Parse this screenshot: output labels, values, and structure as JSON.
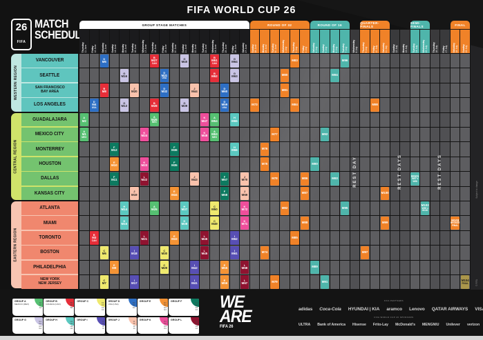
{
  "header": {
    "title": "FIFA WORLD CUP 26",
    "emblem_number": "26",
    "emblem_fifa": "FIFA",
    "left_title_line1": "MATCH",
    "left_title_line2": "SCHEDULE"
  },
  "colors": {
    "stage_orange": "#F08228",
    "stage_teal": "#4FB5AB",
    "final_gold": "#AA964B",
    "grid_cell": "#5d5d60",
    "grid_cell_rest": "#505053",
    "group_header_bg": "#ffffff",
    "date_group_bg": "#1b1b1d",
    "date_rest_bg": "#3a3a3c",
    "groups": {
      "A": "#56C072",
      "B": "#E62E39",
      "C": "#EFE96E",
      "D": "#2E6FC4",
      "E": "#F49335",
      "F": "#0D7A60",
      "G": "#C9C4E4",
      "H": "#5BC8C0",
      "I": "#584FB4",
      "J": "#F9C2AC",
      "K": "#EE4E9B",
      "L": "#8F1330"
    }
  },
  "stages": [
    {
      "label": "GROUP STAGE MATCHES",
      "from": 0,
      "to": 16,
      "bg": "#ffffff",
      "fg": "#1a1a1a"
    },
    {
      "label": "ROUND OF 32",
      "from": 17,
      "to": 22,
      "bg": "#F08228",
      "fg": "#ffffff"
    },
    {
      "label": "ROUND OF 16",
      "from": 23,
      "to": 26,
      "bg": "#4FB5AB",
      "fg": "#ffffff"
    },
    {
      "label": "QUARTER-FINALS",
      "from": 28,
      "to": 30,
      "bg": "#F08228",
      "fg": "#ffffff"
    },
    {
      "label": "SEMI-FINALS",
      "from": 33,
      "to": 34,
      "bg": "#4FB5AB",
      "fg": "#ffffff"
    },
    {
      "label": "FINAL",
      "from": 37,
      "to": 38,
      "bg": "#F08228",
      "fg": "#ffffff"
    }
  ],
  "dates": [
    {
      "day": "Thursday",
      "date": "11 June",
      "type": "group"
    },
    {
      "day": "Friday",
      "date": "12 June",
      "type": "group"
    },
    {
      "day": "Saturday",
      "date": "13 June",
      "type": "group"
    },
    {
      "day": "Sunday",
      "date": "14 June",
      "type": "group"
    },
    {
      "day": "Monday",
      "date": "15 June",
      "type": "group"
    },
    {
      "day": "Tuesday",
      "date": "16 June",
      "type": "group"
    },
    {
      "day": "Wednesday",
      "date": "17 June",
      "type": "group"
    },
    {
      "day": "Thursday",
      "date": "18 June",
      "type": "group"
    },
    {
      "day": "Friday",
      "date": "19 June",
      "type": "group"
    },
    {
      "day": "Saturday",
      "date": "20 June",
      "type": "group"
    },
    {
      "day": "Sunday",
      "date": "21 June",
      "type": "group"
    },
    {
      "day": "Monday",
      "date": "22 June",
      "type": "group"
    },
    {
      "day": "Tuesday",
      "date": "23 June",
      "type": "group"
    },
    {
      "day": "Wednesday",
      "date": "24 June",
      "type": "group"
    },
    {
      "day": "Thursday",
      "date": "25 June",
      "type": "group"
    },
    {
      "day": "Friday",
      "date": "26 June",
      "type": "group"
    },
    {
      "day": "Saturday",
      "date": "27 June",
      "type": "group"
    },
    {
      "day": "Sunday",
      "date": "28 June",
      "type": "r32"
    },
    {
      "day": "Monday",
      "date": "29 June",
      "type": "r32"
    },
    {
      "day": "Tuesday",
      "date": "30 June",
      "type": "r32"
    },
    {
      "day": "Wednesday",
      "date": "1 July",
      "type": "r32"
    },
    {
      "day": "Thursday",
      "date": "2 July",
      "type": "r32"
    },
    {
      "day": "Friday",
      "date": "3 July",
      "type": "r32"
    },
    {
      "day": "Saturday",
      "date": "4 July",
      "type": "r16"
    },
    {
      "day": "Sunday",
      "date": "5 July",
      "type": "r16"
    },
    {
      "day": "Monday",
      "date": "6 July",
      "type": "r16"
    },
    {
      "day": "Tuesday",
      "date": "7 July",
      "type": "r16"
    },
    {
      "day": "Wednesday",
      "date": "8 July",
      "type": "rest"
    },
    {
      "day": "Thursday",
      "date": "9 July",
      "type": "qf"
    },
    {
      "day": "Friday",
      "date": "10 July",
      "type": "qf"
    },
    {
      "day": "Saturday",
      "date": "11 July",
      "type": "qf"
    },
    {
      "day": "Sunday",
      "date": "12 July",
      "type": "rest"
    },
    {
      "day": "Monday",
      "date": "13 July",
      "type": "rest"
    },
    {
      "day": "Tuesday",
      "date": "14 July",
      "type": "sf"
    },
    {
      "day": "Wednesday",
      "date": "15 July",
      "type": "sf"
    },
    {
      "day": "Thursday",
      "date": "16 July",
      "type": "rest"
    },
    {
      "day": "Friday",
      "date": "17 July",
      "type": "rest"
    },
    {
      "day": "Saturday",
      "date": "18 July",
      "type": "final"
    },
    {
      "day": "Sunday",
      "date": "19 July",
      "type": "final"
    }
  ],
  "rest_labels": [
    {
      "from": 27,
      "to": 27,
      "text": "REST DAY"
    },
    {
      "from": 31,
      "to": 32,
      "text": "REST DAYS"
    },
    {
      "from": 35,
      "to": 36,
      "text": "REST DAYS"
    }
  ],
  "regions": [
    {
      "name": "WESTERN REGION",
      "tab": "#BFE7E1",
      "cell": "#5FC5BE",
      "cities": [
        [
          "VANCOUVER"
        ],
        [
          "SEATTLE"
        ],
        [
          "SAN FRANCISCO",
          "BAY AREA"
        ],
        [
          "LOS ANGELES"
        ]
      ]
    },
    {
      "name": "CENTRAL REGION",
      "tab": "#CFE36A",
      "cell": "#74C36F",
      "cities": [
        [
          "GUADALAJARA"
        ],
        [
          "MEXICO CITY"
        ],
        [
          "MONTERREY"
        ],
        [
          "HOUSTON"
        ],
        [
          "DALLAS"
        ],
        [
          "KANSAS CITY"
        ]
      ]
    },
    {
      "name": "EASTERN REGION",
      "tab": "#F8C4B1",
      "cell": "#F0876E",
      "cities": [
        [
          "ATLANTA"
        ],
        [
          "MIAMI"
        ],
        [
          "TORONTO"
        ],
        [
          "BOSTON"
        ],
        [
          "PHILADELPHIA"
        ],
        [
          "NEW YORK",
          "NEW JERSEY"
        ]
      ]
    }
  ],
  "matches": [
    {
      "row": 0,
      "col": 2,
      "group": "D",
      "code": "M5"
    },
    {
      "row": 0,
      "col": 7,
      "group": "B",
      "code": "M27",
      "note": "CAN"
    },
    {
      "row": 0,
      "col": 10,
      "group": "G",
      "code": "M40"
    },
    {
      "row": 0,
      "col": 13,
      "group": "B",
      "code": "M51",
      "note": "CAN"
    },
    {
      "row": 0,
      "col": 15,
      "group": "G",
      "code": "M64"
    },
    {
      "row": 0,
      "col": 21,
      "stage": "r32",
      "code": "M83"
    },
    {
      "row": 0,
      "col": 26,
      "stage": "r16",
      "code": "M96"
    },
    {
      "row": 1,
      "col": 4,
      "group": "G",
      "code": "M16"
    },
    {
      "row": 1,
      "col": 8,
      "group": "D",
      "code": "M31",
      "note": "USA"
    },
    {
      "row": 1,
      "col": 13,
      "group": "B",
      "code": "M52"
    },
    {
      "row": 1,
      "col": 15,
      "group": "G",
      "code": "M63"
    },
    {
      "row": 1,
      "col": 20,
      "stage": "r32",
      "code": "M80"
    },
    {
      "row": 1,
      "col": 25,
      "stage": "r16",
      "code": "M94"
    },
    {
      "row": 2,
      "col": 2,
      "group": "B",
      "code": "M8"
    },
    {
      "row": 2,
      "col": 5,
      "group": "J",
      "code": "M20"
    },
    {
      "row": 2,
      "col": 8,
      "group": "D",
      "code": "M32"
    },
    {
      "row": 2,
      "col": 11,
      "group": "J",
      "code": "M44"
    },
    {
      "row": 2,
      "col": 14,
      "group": "D",
      "code": "M60"
    },
    {
      "row": 2,
      "col": 20,
      "stage": "r32",
      "code": "M81"
    },
    {
      "row": 3,
      "col": 1,
      "group": "D",
      "code": "M4",
      "note": "USA"
    },
    {
      "row": 3,
      "col": 4,
      "group": "G",
      "code": "M13"
    },
    {
      "row": 3,
      "col": 7,
      "group": "B",
      "code": "M28"
    },
    {
      "row": 3,
      "col": 10,
      "group": "G",
      "code": "M39"
    },
    {
      "row": 3,
      "col": 14,
      "group": "D",
      "code": "M59",
      "note": "USA"
    },
    {
      "row": 3,
      "col": 17,
      "stage": "r32",
      "code": "M73"
    },
    {
      "row": 3,
      "col": 21,
      "stage": "r32",
      "code": "M84"
    },
    {
      "row": 3,
      "col": 29,
      "stage": "qf",
      "code": "M98"
    },
    {
      "row": 4,
      "col": 0,
      "group": "A",
      "code": "M2"
    },
    {
      "row": 4,
      "col": 7,
      "group": "A",
      "code": "M26",
      "note": "MEX"
    },
    {
      "row": 4,
      "col": 12,
      "group": "K",
      "code": "M47"
    },
    {
      "row": 4,
      "col": 13,
      "group": "A",
      "code": "M54"
    },
    {
      "row": 4,
      "col": 15,
      "group": "H",
      "code": "M65"
    },
    {
      "row": 5,
      "col": 0,
      "group": "A",
      "code": "M1",
      "note": "MEX"
    },
    {
      "row": 5,
      "col": 6,
      "group": "K",
      "code": "M24"
    },
    {
      "row": 5,
      "col": 12,
      "group": "K",
      "code": "M48"
    },
    {
      "row": 5,
      "col": 13,
      "group": "A",
      "code": "M53",
      "note": "MEX"
    },
    {
      "row": 5,
      "col": 19,
      "stage": "r32",
      "code": "M77"
    },
    {
      "row": 5,
      "col": 24,
      "stage": "r16",
      "code": "M92"
    },
    {
      "row": 6,
      "col": 3,
      "group": "F",
      "code": "M12"
    },
    {
      "row": 6,
      "col": 9,
      "group": "F",
      "code": "M36"
    },
    {
      "row": 6,
      "col": 15,
      "group": "H",
      "code": "M66"
    },
    {
      "row": 6,
      "col": 18,
      "stage": "r32",
      "code": "M76"
    },
    {
      "row": 7,
      "col": 3,
      "group": "E",
      "code": "M10"
    },
    {
      "row": 7,
      "col": 6,
      "group": "K",
      "code": "M23"
    },
    {
      "row": 7,
      "col": 9,
      "group": "F",
      "code": "M35"
    },
    {
      "row": 7,
      "col": 18,
      "stage": "r32",
      "code": "M75"
    },
    {
      "row": 7,
      "col": 23,
      "stage": "r16",
      "code": "M90"
    },
    {
      "row": 8,
      "col": 3,
      "group": "F",
      "code": "M11"
    },
    {
      "row": 8,
      "col": 6,
      "group": "L",
      "code": "M22"
    },
    {
      "row": 8,
      "col": 11,
      "group": "J",
      "code": "M43"
    },
    {
      "row": 8,
      "col": 14,
      "group": "F",
      "code": "M57"
    },
    {
      "row": 8,
      "col": 16,
      "group": "J",
      "code": "M70"
    },
    {
      "row": 8,
      "col": 19,
      "stage": "r32",
      "code": "M78"
    },
    {
      "row": 8,
      "col": 22,
      "stage": "r32",
      "code": "M86"
    },
    {
      "row": 8,
      "col": 25,
      "stage": "r16",
      "code": "M93"
    },
    {
      "row": 8,
      "col": 33,
      "stage": "sf",
      "code": "M101",
      "sub": "W97 v W98"
    },
    {
      "row": 9,
      "col": 5,
      "group": "J",
      "code": "M19"
    },
    {
      "row": 9,
      "col": 9,
      "group": "E",
      "code": "M34"
    },
    {
      "row": 9,
      "col": 14,
      "group": "F",
      "code": "M58"
    },
    {
      "row": 9,
      "col": 16,
      "group": "J",
      "code": "M69"
    },
    {
      "row": 9,
      "col": 22,
      "stage": "r32",
      "code": "M87"
    },
    {
      "row": 9,
      "col": 30,
      "stage": "qf",
      "code": "M100"
    },
    {
      "row": 10,
      "col": 4,
      "group": "H",
      "code": "M14"
    },
    {
      "row": 10,
      "col": 7,
      "group": "A",
      "code": "M25"
    },
    {
      "row": 10,
      "col": 10,
      "group": "H",
      "code": "M37"
    },
    {
      "row": 10,
      "col": 13,
      "group": "C",
      "code": "M50"
    },
    {
      "row": 10,
      "col": 16,
      "group": "K",
      "code": "M72"
    },
    {
      "row": 10,
      "col": 20,
      "stage": "r32",
      "code": "M82"
    },
    {
      "row": 10,
      "col": 26,
      "stage": "r16",
      "code": "M95"
    },
    {
      "row": 10,
      "col": 34,
      "stage": "sf",
      "code": "M102",
      "sub": "W99 v W100"
    },
    {
      "row": 11,
      "col": 4,
      "group": "H",
      "code": "M15"
    },
    {
      "row": 11,
      "col": 10,
      "group": "H",
      "code": "M38"
    },
    {
      "row": 11,
      "col": 13,
      "group": "C",
      "code": "M49"
    },
    {
      "row": 11,
      "col": 16,
      "group": "K",
      "code": "M71"
    },
    {
      "row": 11,
      "col": 22,
      "stage": "r32",
      "code": "M88"
    },
    {
      "row": 11,
      "col": 30,
      "stage": "qf",
      "code": "M99"
    },
    {
      "row": 11,
      "col": 37,
      "stage": "bronze",
      "code": "M103",
      "sub": "BRONZE FINAL"
    },
    {
      "row": 12,
      "col": 1,
      "group": "B",
      "code": "M3",
      "note": "CAN"
    },
    {
      "row": 12,
      "col": 6,
      "group": "L",
      "code": "M21"
    },
    {
      "row": 12,
      "col": 9,
      "group": "E",
      "code": "M33"
    },
    {
      "row": 12,
      "col": 12,
      "group": "L",
      "code": "M46"
    },
    {
      "row": 12,
      "col": 15,
      "group": "I",
      "code": "M62"
    },
    {
      "row": 12,
      "col": 21,
      "stage": "r32",
      "code": "M85"
    },
    {
      "row": 13,
      "col": 2,
      "group": "C",
      "code": "M6"
    },
    {
      "row": 13,
      "col": 5,
      "group": "I",
      "code": "M18"
    },
    {
      "row": 13,
      "col": 8,
      "group": "C",
      "code": "M30"
    },
    {
      "row": 13,
      "col": 12,
      "group": "L",
      "code": "M45"
    },
    {
      "row": 13,
      "col": 15,
      "group": "I",
      "code": "M61"
    },
    {
      "row": 13,
      "col": 18,
      "stage": "r32",
      "code": "M74"
    },
    {
      "row": 13,
      "col": 28,
      "stage": "qf",
      "code": "M97"
    },
    {
      "row": 14,
      "col": 3,
      "group": "E",
      "code": "M9"
    },
    {
      "row": 14,
      "col": 8,
      "group": "C",
      "code": "M29"
    },
    {
      "row": 14,
      "col": 11,
      "group": "I",
      "code": "M42"
    },
    {
      "row": 14,
      "col": 14,
      "group": "E",
      "code": "M55"
    },
    {
      "row": 14,
      "col": 16,
      "group": "L",
      "code": "M68"
    },
    {
      "row": 14,
      "col": 23,
      "stage": "r16",
      "code": "M89"
    },
    {
      "row": 15,
      "col": 2,
      "group": "C",
      "code": "M7"
    },
    {
      "row": 15,
      "col": 5,
      "group": "I",
      "code": "M17"
    },
    {
      "row": 15,
      "col": 11,
      "group": "I",
      "code": "M41"
    },
    {
      "row": 15,
      "col": 14,
      "group": "E",
      "code": "M56"
    },
    {
      "row": 15,
      "col": 16,
      "group": "L",
      "code": "M67"
    },
    {
      "row": 15,
      "col": 19,
      "stage": "r32",
      "code": "M79"
    },
    {
      "row": 15,
      "col": 24,
      "stage": "r16",
      "code": "M91"
    },
    {
      "row": 15,
      "col": 38,
      "stage": "final",
      "code": "M104",
      "sub": "FINAL"
    }
  ],
  "legend": [
    {
      "id": "A",
      "title": "GROUP A",
      "team": "MEXICO (MEX)",
      "slots": [
        "A2",
        "A3",
        "A4"
      ]
    },
    {
      "id": "B",
      "title": "GROUP B",
      "team": "CANADA (CAN)",
      "slots": [
        "B2",
        "B3",
        "B4"
      ]
    },
    {
      "id": "C",
      "title": "GROUP C",
      "team": "",
      "slots": [
        "C1",
        "C2",
        "C3",
        "C4"
      ]
    },
    {
      "id": "D",
      "title": "GROUP D",
      "team": "USA (USA)",
      "slots": [
        "D2",
        "D3",
        "D4"
      ]
    },
    {
      "id": "E",
      "title": "GROUP E",
      "team": "",
      "slots": [
        "E1",
        "E2",
        "E3",
        "E4"
      ]
    },
    {
      "id": "F",
      "title": "GROUP F",
      "team": "",
      "slots": [
        "F1",
        "F2",
        "F3",
        "F4"
      ]
    },
    {
      "id": "G",
      "title": "GROUP G",
      "team": "",
      "slots": [
        "G1",
        "G2",
        "G3",
        "G4"
      ]
    },
    {
      "id": "H",
      "title": "GROUP H",
      "team": "",
      "slots": [
        "H1",
        "H2",
        "H3",
        "H4"
      ]
    },
    {
      "id": "I",
      "title": "GROUP I",
      "team": "",
      "slots": [
        "I1",
        "I2",
        "I3",
        "I4"
      ]
    },
    {
      "id": "J",
      "title": "GROUP J",
      "team": "",
      "slots": [
        "J1",
        "J2",
        "J3",
        "J4"
      ]
    },
    {
      "id": "K",
      "title": "GROUP K",
      "team": "",
      "slots": [
        "K1",
        "K2",
        "K3",
        "K4"
      ]
    },
    {
      "id": "L",
      "title": "GROUP L",
      "team": "",
      "slots": [
        "L1",
        "L2",
        "L3",
        "L4"
      ]
    }
  ],
  "we_are": {
    "line1": "WE",
    "line2": "ARE",
    "fifa": "FIFA 26"
  },
  "sponsors": {
    "row1_caption": "FIFA PARTNERS",
    "row1": [
      "adidas",
      "Coca-Cola",
      "HYUNDAI | KIA",
      "aramco",
      "Lenovo",
      "QATAR AIRWAYS",
      "VISA"
    ],
    "row2_caption": "FIFA WORLD CUP 26 SPONSORS",
    "row2": [
      "ULTRA",
      "Bank of America",
      "Hisense",
      "Frito-Lay",
      "McDonald's",
      "MENGNIU",
      "Unilever",
      "verizon"
    ]
  },
  "fineprint": {
    "right_top": "Subject to change",
    "right_bottom": "© FIFA"
  }
}
